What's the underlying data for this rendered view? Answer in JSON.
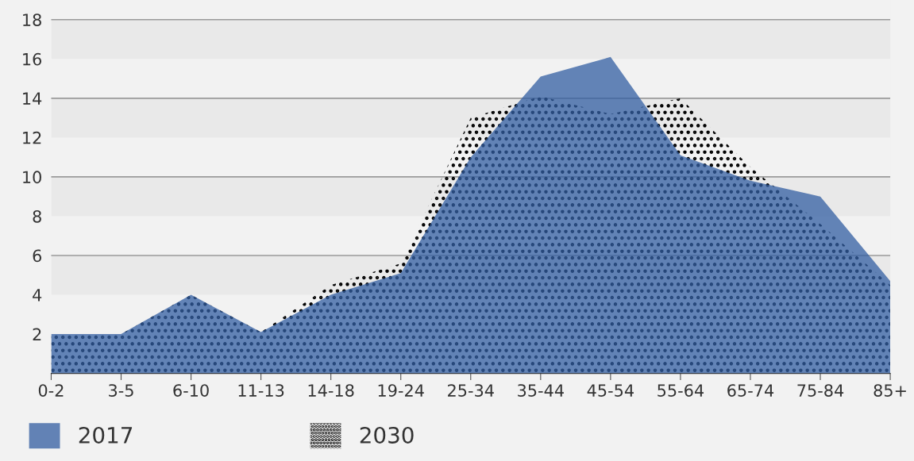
{
  "chart_data": {
    "type": "area",
    "categories": [
      "0-2",
      "3-5",
      "6-10",
      "11-13",
      "14-18",
      "19-24",
      "25-34",
      "35-44",
      "45-54",
      "55-64",
      "65-74",
      "75-84",
      "85+"
    ],
    "series": [
      {
        "name": "2017",
        "color": "#6282b5",
        "values": [
          2.0,
          2.0,
          4.0,
          2.1,
          4.0,
          5.1,
          11.0,
          15.1,
          16.1,
          11.1,
          9.8,
          9.0,
          4.7
        ]
      },
      {
        "name": "2030",
        "color": "#000000",
        "values": [
          2.0,
          2.0,
          4.0,
          2.1,
          4.5,
          5.6,
          13.0,
          14.1,
          13.2,
          14.0,
          10.5,
          7.6,
          4.5
        ]
      }
    ],
    "ylim": [
      0,
      19
    ],
    "yticks": [
      2,
      4,
      6,
      8,
      10,
      12,
      14,
      16,
      18
    ],
    "ref_lines": [
      {
        "axis": "y",
        "value": 6,
        "color": "#9a9a9a"
      },
      {
        "axis": "y",
        "value": 10,
        "color": "#9a9a9a"
      },
      {
        "axis": "y",
        "value": 14,
        "color": "#9a9a9a"
      },
      {
        "axis": "y",
        "value": 18,
        "color": "#9a9a9a"
      }
    ],
    "bands": [
      {
        "axis": "y",
        "from": 4,
        "to": 6,
        "color": "#e9e9e9"
      },
      {
        "axis": "y",
        "from": 8,
        "to": 10,
        "color": "#e9e9e9"
      },
      {
        "axis": "y",
        "from": 12,
        "to": 14,
        "color": "#e9e9e9"
      },
      {
        "axis": "y",
        "from": 16,
        "to": 18,
        "color": "#e9e9e9"
      }
    ],
    "grid": false,
    "legend": "bottom left"
  }
}
